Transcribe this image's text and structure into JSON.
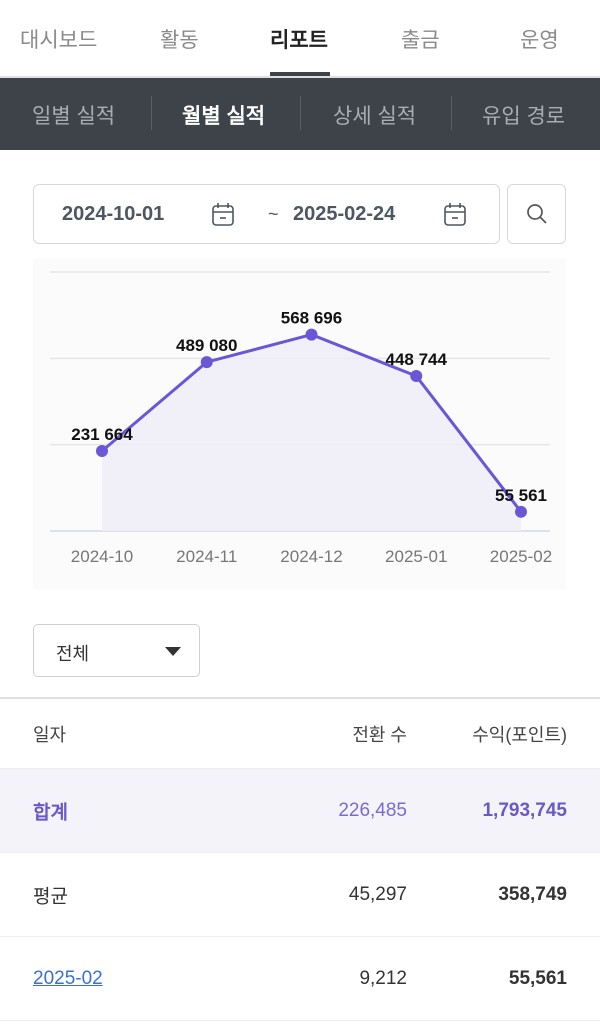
{
  "top_tabs": [
    "대시보드",
    "활동",
    "리포트",
    "출금",
    "운영"
  ],
  "sub_tabs": [
    "일별 실적",
    "월별 실적",
    "상세 실적",
    "유입 경로"
  ],
  "date_range": {
    "start": "2024-10-01",
    "separator": "~",
    "end": "2025-02-24"
  },
  "filter": {
    "selected": "전체"
  },
  "chart_data": {
    "type": "line",
    "categories": [
      "2024-10",
      "2024-11",
      "2024-12",
      "2025-01",
      "2025-02"
    ],
    "values": [
      231664,
      489080,
      568696,
      448744,
      55561
    ],
    "labels": [
      "231 664",
      "489 080",
      "568 696",
      "448 744",
      "55 561"
    ],
    "ylim": [
      0,
      750000
    ],
    "grid": true,
    "color": "#6b56d6"
  },
  "table": {
    "headers": [
      "일자",
      "전환 수",
      "수익(포인트)"
    ],
    "rows": [
      {
        "date": "합계",
        "conversions": "226,485",
        "revenue": "1,793,745"
      },
      {
        "date": "평균",
        "conversions": "45,297",
        "revenue": "358,749"
      },
      {
        "date": "2025-02",
        "conversions": "9,212",
        "revenue": "55,561"
      }
    ]
  }
}
